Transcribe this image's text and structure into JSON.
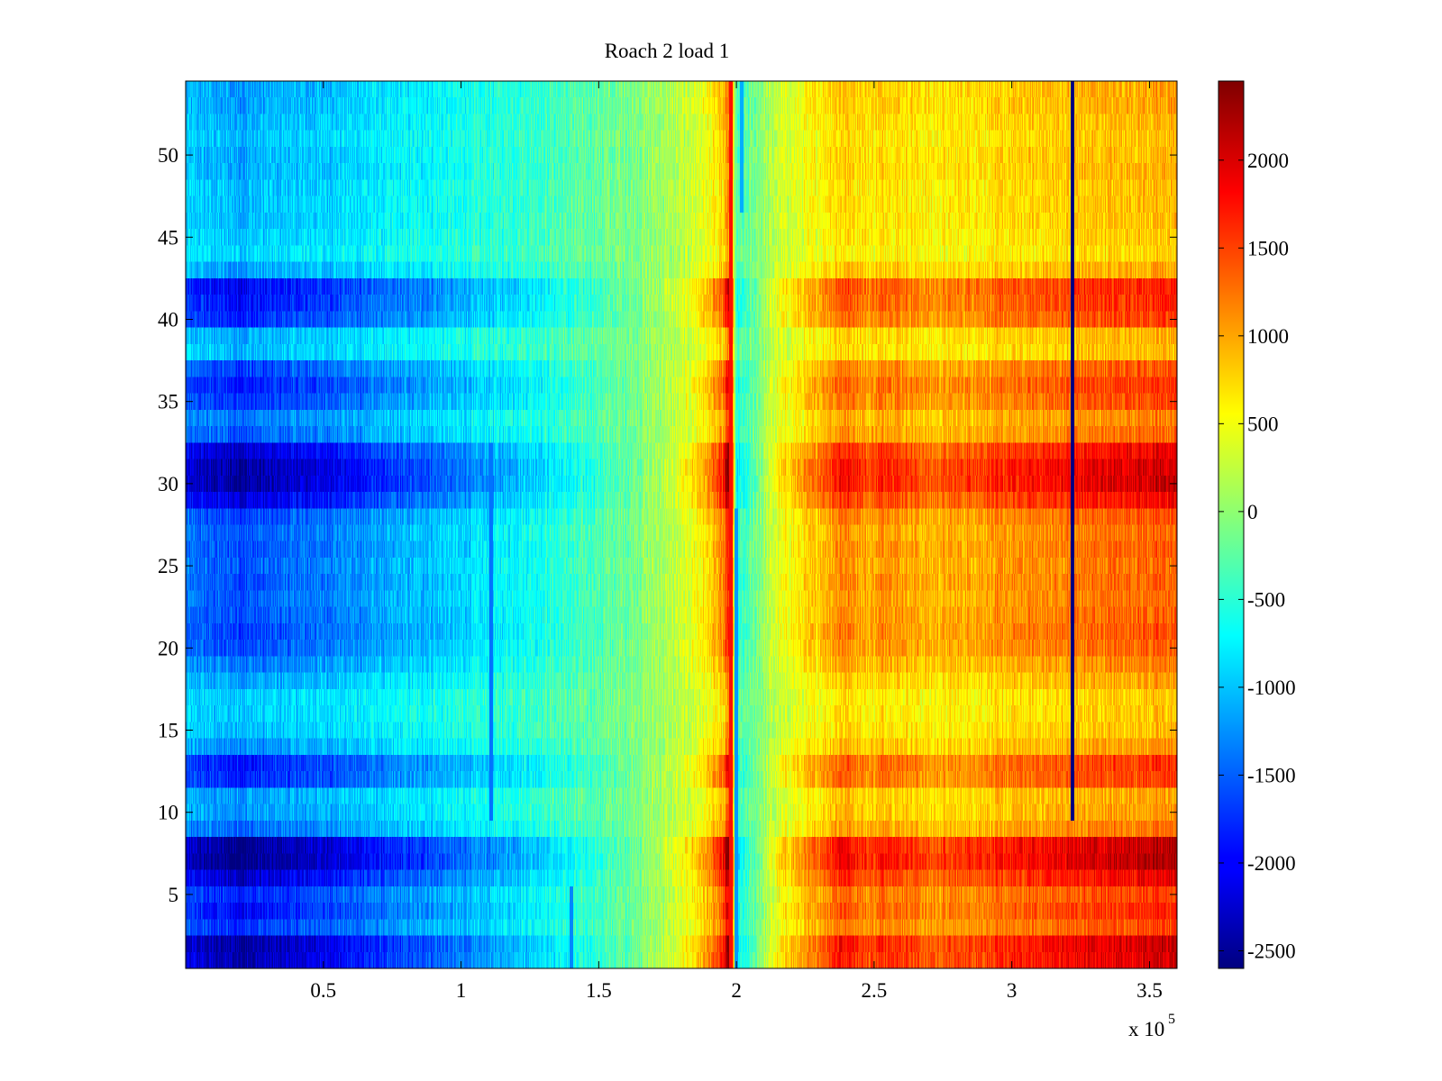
{
  "chart_data": {
    "type": "heatmap",
    "title": "Roach 2 load 1",
    "xlabel": "",
    "ylabel": "",
    "x_multiplier_label": "x 10",
    "x_multiplier_exponent": "5",
    "xlim": [
      0,
      3.6
    ],
    "ylim": [
      0.5,
      54.5
    ],
    "rows": 54,
    "x_ticks": [
      0.5,
      1,
      1.5,
      2,
      2.5,
      3,
      3.5
    ],
    "x_tick_labels": [
      "0.5",
      "1",
      "1.5",
      "2",
      "2.5",
      "3",
      "3.5"
    ],
    "y_ticks": [
      5,
      10,
      15,
      20,
      25,
      30,
      35,
      40,
      45,
      50
    ],
    "y_tick_labels": [
      "5",
      "10",
      "15",
      "20",
      "25",
      "30",
      "35",
      "40",
      "45",
      "50"
    ],
    "colorbar": {
      "colormap": "jet",
      "clim": [
        -2600,
        2450
      ],
      "ticks": [
        -2500,
        -2000,
        -1500,
        -1000,
        -500,
        0,
        500,
        1000,
        1500,
        2000
      ],
      "tick_labels": [
        "-2500",
        "-2000",
        "-1500",
        "-1000",
        "-500",
        "0",
        "500",
        "1000",
        "1500",
        "2000"
      ]
    },
    "x_profile": {
      "x": [
        0,
        0.2,
        0.5,
        0.8,
        1.0,
        1.2,
        1.4,
        1.6,
        1.8,
        1.9,
        1.95,
        1.98,
        2.0,
        2.05,
        2.15,
        2.3,
        2.38,
        2.42,
        2.48,
        2.55,
        2.7,
        3.0,
        3.3,
        3.6
      ],
      "values": [
        -1250,
        -1400,
        -1200,
        -950,
        -800,
        -600,
        -400,
        -150,
        250,
        650,
        950,
        1650,
        -500,
        -250,
        350,
        750,
        1050,
        1000,
        850,
        1000,
        800,
        950,
        1100,
        1200
      ]
    },
    "row_amplitude": [
      1.7,
      1.75,
      1.25,
      1.4,
      1.3,
      1.6,
      1.85,
      1.8,
      1.05,
      0.9,
      0.85,
      1.3,
      1.35,
      0.9,
      0.75,
      0.7,
      0.7,
      0.85,
      1.0,
      1.15,
      1.2,
      1.15,
      1.1,
      1.15,
      1.1,
      1.15,
      1.1,
      1.2,
      1.55,
      1.75,
      1.75,
      1.6,
      1.1,
      1.0,
      1.25,
      1.35,
      1.2,
      0.75,
      0.8,
      1.3,
      1.4,
      1.45,
      0.85,
      0.65,
      0.7,
      0.75,
      0.75,
      0.75,
      0.8,
      0.8,
      0.75,
      0.8,
      0.85,
      0.85
    ],
    "stripes": [
      {
        "x": 1.98,
        "value": 1750,
        "y_from": 1,
        "y_to": 54
      },
      {
        "x": 2.0,
        "value": -1200,
        "y_from": 1,
        "y_to": 28
      },
      {
        "x": 2.02,
        "value": -1100,
        "y_from": 47,
        "y_to": 54
      },
      {
        "x": 1.11,
        "value": -1400,
        "y_from": 10,
        "y_to": 32
      },
      {
        "x": 3.22,
        "value": -2600,
        "y_from": 10,
        "y_to": 54
      },
      {
        "x": 1.4,
        "value": -1300,
        "y_from": 1,
        "y_to": 5
      }
    ]
  }
}
